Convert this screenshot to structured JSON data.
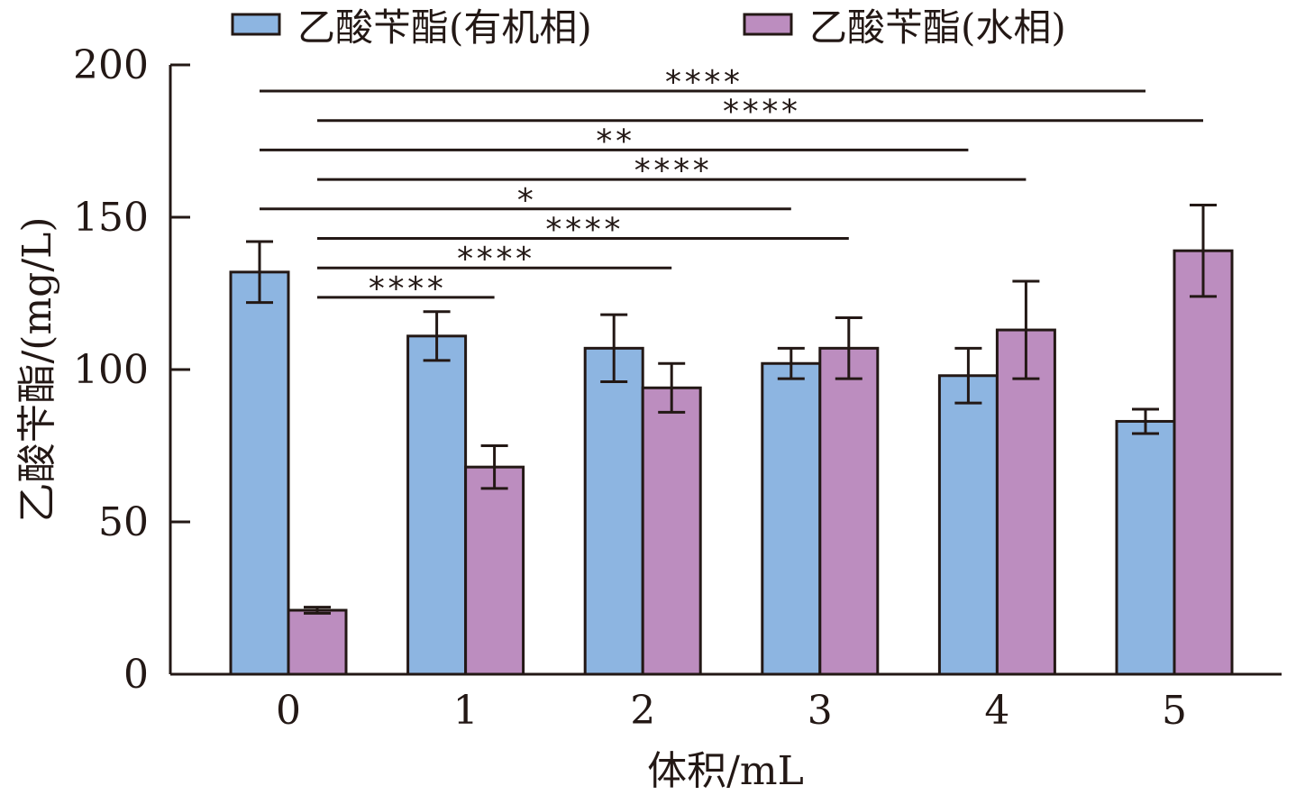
{
  "chart_data": {
    "type": "bar",
    "title": "",
    "xlabel": "体积/mL",
    "ylabel": "乙酸苄酯/(mg/L)",
    "categories": [
      "0",
      "1",
      "2",
      "3",
      "4",
      "5"
    ],
    "ylim": [
      0,
      200
    ],
    "yticks": [
      0,
      50,
      100,
      150,
      200
    ],
    "grid": false,
    "legend_position": "top",
    "series": [
      {
        "name": "乙酸苄酯(有机相)",
        "color": "#8db5e1",
        "values": [
          132,
          111,
          107,
          102,
          98,
          83
        ],
        "errors": [
          10,
          8,
          11,
          5,
          9,
          4
        ]
      },
      {
        "name": "乙酸苄酯(水相)",
        "color": "#bc8dbf",
        "values": [
          21,
          68,
          94,
          107,
          113,
          139
        ],
        "errors": [
          1,
          7,
          8,
          10,
          16,
          15
        ]
      }
    ],
    "significance": [
      {
        "label": "****",
        "from": "0",
        "to": "5",
        "from_series": 0,
        "to_series": 0
      },
      {
        "label": "****",
        "from": "0",
        "to": "5",
        "from_series": 1,
        "to_series": 1
      },
      {
        "label": "**",
        "from": "0",
        "to": "4",
        "from_series": 0,
        "to_series": 0
      },
      {
        "label": "****",
        "from": "0",
        "to": "4",
        "from_series": 1,
        "to_series": 1
      },
      {
        "label": "*",
        "from": "0",
        "to": "3",
        "from_series": 0,
        "to_series": 0
      },
      {
        "label": "****",
        "from": "0",
        "to": "3",
        "from_series": 1,
        "to_series": 1
      },
      {
        "label": "****",
        "from": "0",
        "to": "2",
        "from_series": 1,
        "to_series": 1
      },
      {
        "label": "****",
        "from": "0",
        "to": "1",
        "from_series": 1,
        "to_series": 1
      }
    ]
  }
}
